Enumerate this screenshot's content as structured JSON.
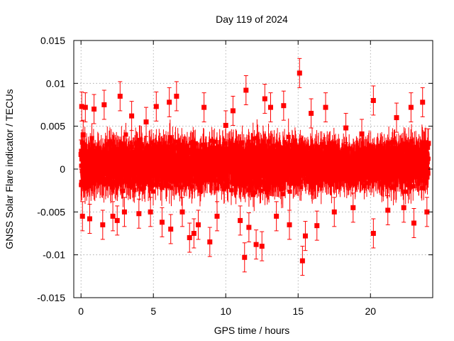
{
  "chart_data": {
    "type": "scatter",
    "title": "Day 119 of 2024",
    "xlabel": "GPS time / hours",
    "ylabel": "GNSS Solar Flare indicator / TECUs",
    "xlim": [
      -0.5,
      24.3
    ],
    "ylim": [
      -0.015,
      0.015
    ],
    "xticks": [
      0,
      5,
      10,
      15,
      20
    ],
    "xtick_labels": [
      "0",
      "5",
      "10",
      "15",
      "20"
    ],
    "yticks": [
      -0.015,
      -0.01,
      -0.005,
      0,
      0.005,
      0.01,
      0.015
    ],
    "ytick_labels": [
      "-0.015",
      "-0.01",
      "-0.005",
      "0",
      "0.005",
      "0.01",
      "0.015"
    ],
    "grid": true,
    "legend": "none",
    "marker": "filled-square",
    "error_bars": true,
    "series_color": "#ff0000",
    "sampling_interval_hours": 0.00833,
    "typical_error": 0.0017,
    "points": [
      [
        0.0,
        0.0017
      ],
      [
        0.05,
        0.0073
      ],
      [
        0.1,
        -0.0055
      ],
      [
        0.15,
        0.004
      ],
      [
        0.3,
        0.0072
      ],
      [
        0.6,
        -0.0058
      ],
      [
        0.9,
        0.007
      ],
      [
        1.5,
        -0.0065
      ],
      [
        1.6,
        0.0075
      ],
      [
        2.2,
        -0.0055
      ],
      [
        2.5,
        -0.006
      ],
      [
        2.7,
        0.0085
      ],
      [
        3.0,
        -0.005
      ],
      [
        3.5,
        0.0062
      ],
      [
        4.0,
        -0.0052
      ],
      [
        4.5,
        0.0055
      ],
      [
        4.8,
        -0.005
      ],
      [
        5.2,
        0.0073
      ],
      [
        5.6,
        -0.0062
      ],
      [
        6.1,
        0.0078
      ],
      [
        6.2,
        -0.007
      ],
      [
        6.6,
        0.0085
      ],
      [
        7.0,
        -0.005
      ],
      [
        7.5,
        -0.008
      ],
      [
        7.8,
        -0.0075
      ],
      [
        8.1,
        -0.0065
      ],
      [
        8.5,
        0.0072
      ],
      [
        8.9,
        -0.0085
      ],
      [
        9.4,
        -0.0055
      ],
      [
        10.0,
        0.0051
      ],
      [
        10.5,
        0.0068
      ],
      [
        11.0,
        -0.006
      ],
      [
        11.3,
        -0.0103
      ],
      [
        11.4,
        0.0092
      ],
      [
        11.6,
        -0.0068
      ],
      [
        12.1,
        -0.0088
      ],
      [
        12.5,
        -0.009
      ],
      [
        12.7,
        0.0082
      ],
      [
        13.1,
        0.0072
      ],
      [
        13.5,
        -0.0055
      ],
      [
        14.0,
        0.0074
      ],
      [
        14.4,
        -0.0065
      ],
      [
        15.1,
        0.0112
      ],
      [
        15.3,
        -0.0107
      ],
      [
        15.5,
        -0.0078
      ],
      [
        15.9,
        0.0065
      ],
      [
        16.3,
        -0.0066
      ],
      [
        16.9,
        0.0072
      ],
      [
        17.5,
        -0.005
      ],
      [
        18.3,
        0.0048
      ],
      [
        18.8,
        -0.0045
      ],
      [
        19.4,
        0.0041
      ],
      [
        20.2,
        0.008
      ],
      [
        20.2,
        -0.0075
      ],
      [
        21.2,
        -0.0048
      ],
      [
        21.8,
        0.006
      ],
      [
        22.3,
        -0.0045
      ],
      [
        22.8,
        0.0072
      ],
      [
        23.0,
        -0.0063
      ],
      [
        23.6,
        0.0078
      ],
      [
        23.9,
        -0.005
      ],
      [
        24.0,
        0.003
      ]
    ]
  }
}
